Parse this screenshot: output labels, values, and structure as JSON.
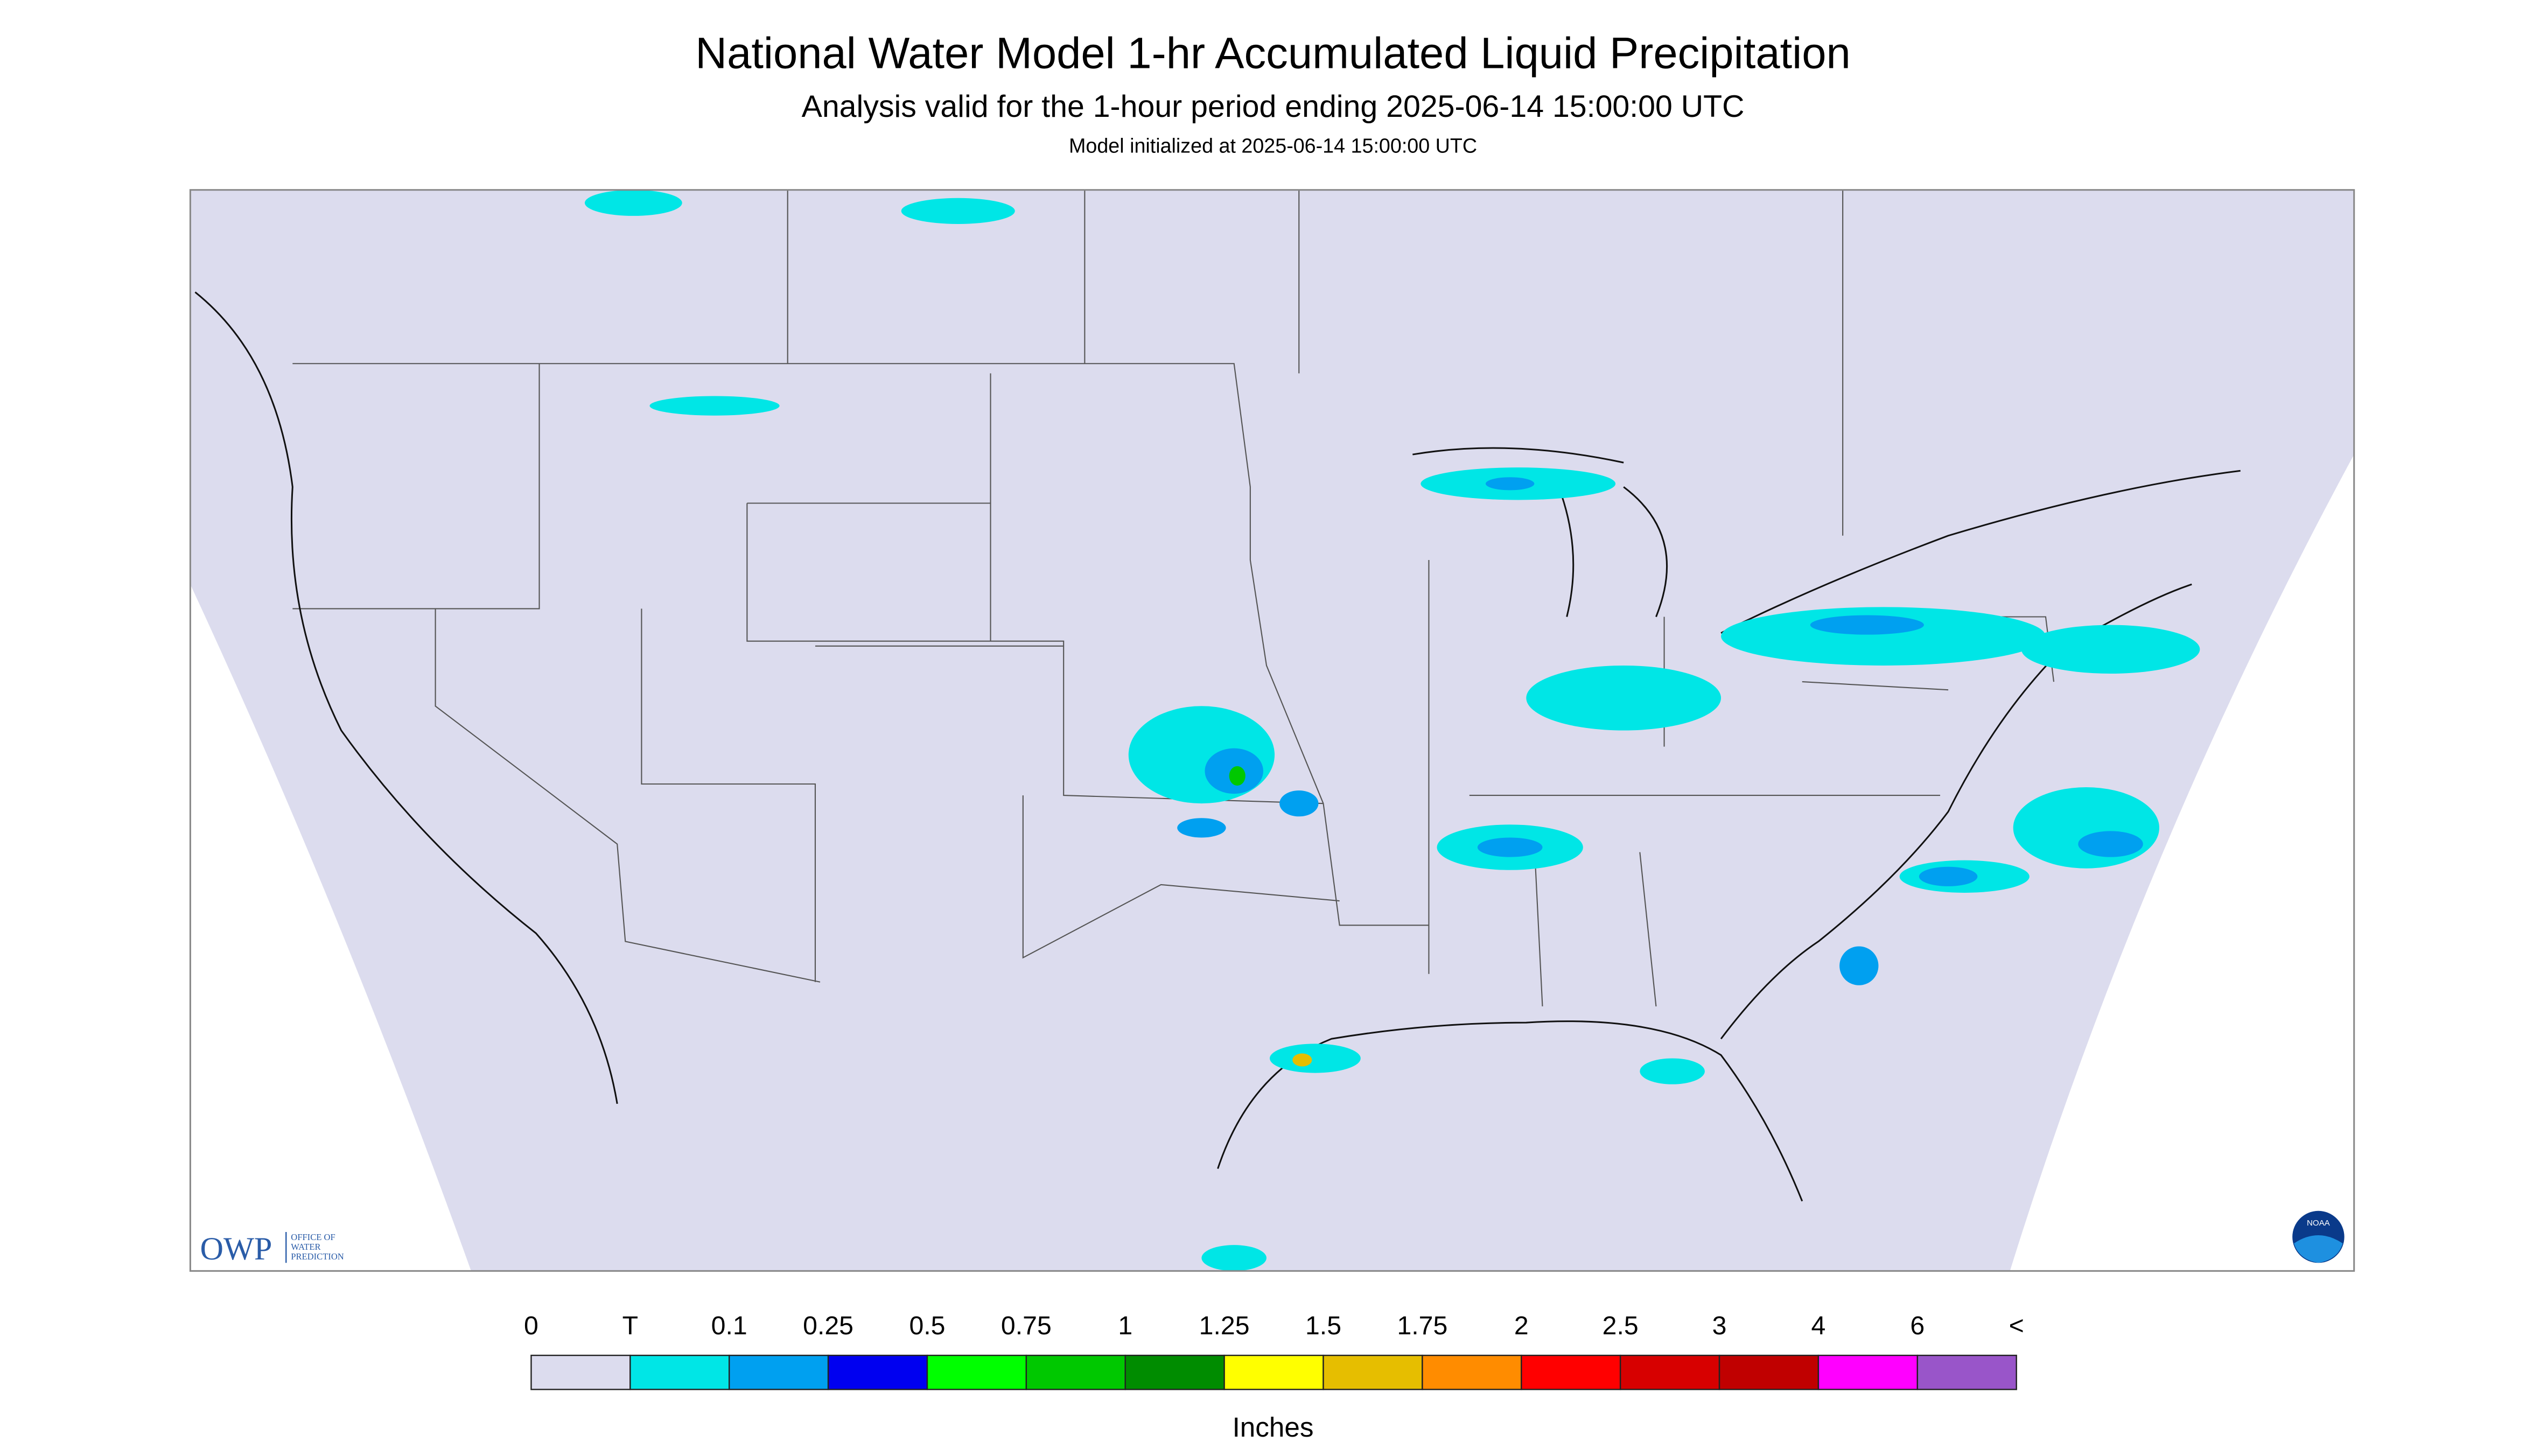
{
  "header": {
    "title": "National Water Model 1-hr Accumulated Liquid Precipitation",
    "subtitle": "Analysis valid for the 1-hour period ending 2025-06-14 15:00:00 UTC",
    "note": "Model initialized at 2025-06-14 15:00:00 UTC"
  },
  "logos": {
    "owp": "OWP",
    "owp_name": [
      "OFFICE OF",
      "WATER",
      "PREDICTION"
    ],
    "noaa": "NOAA"
  },
  "legend": {
    "labels": [
      "0",
      "T",
      "0.1",
      "0.25",
      "0.5",
      "0.75",
      "1",
      "1.25",
      "1.5",
      "1.75",
      "2",
      "2.5",
      "3",
      "4",
      "6",
      "<"
    ],
    "colors": [
      "#dcdcee",
      "#00e6e6",
      "#00a0f0",
      "#0000f0",
      "#00ff00",
      "#00c800",
      "#008c00",
      "#ffff00",
      "#e6be00",
      "#ff8c00",
      "#ff0000",
      "#d70000",
      "#c00000",
      "#ff00ff",
      "#9955c9"
    ],
    "units": "Inches"
  }
}
